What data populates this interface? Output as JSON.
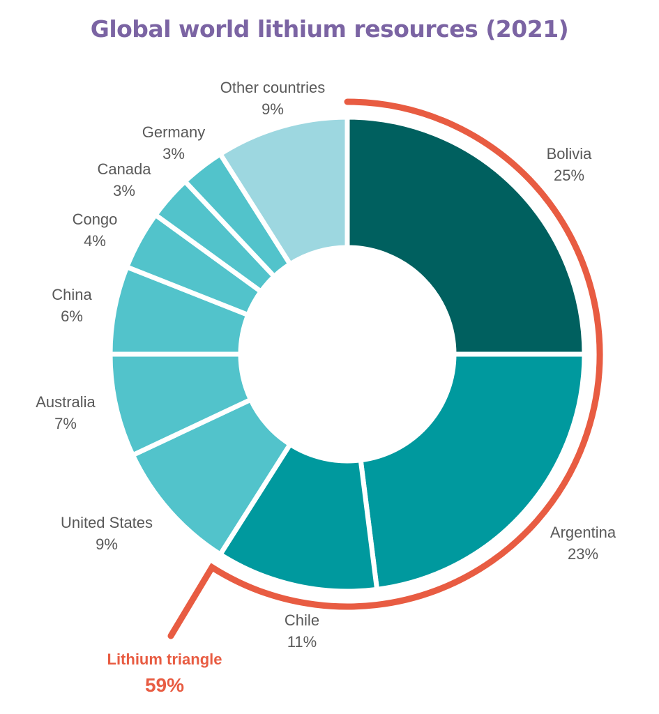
{
  "chart_data": {
    "type": "pie",
    "variant": "donut",
    "title": "Global world lithium resources (2021)",
    "unit": "%",
    "slices": [
      {
        "label": "Bolivia",
        "value": 25,
        "display": "25%",
        "color": "#00605f"
      },
      {
        "label": "Argentina",
        "value": 23,
        "display": "23%",
        "color": "#00999e"
      },
      {
        "label": "Chile",
        "value": 11,
        "display": "11%",
        "color": "#00999e"
      },
      {
        "label": "United States",
        "value": 9,
        "display": "9%",
        "color": "#52c3cb"
      },
      {
        "label": "Australia",
        "value": 7,
        "display": "7%",
        "color": "#52c3cb"
      },
      {
        "label": "China",
        "value": 6,
        "display": "6%",
        "color": "#52c3cb"
      },
      {
        "label": "Congo",
        "value": 4,
        "display": "4%",
        "color": "#52c3cb"
      },
      {
        "label": "Canada",
        "value": 3,
        "display": "3%",
        "color": "#52c3cb"
      },
      {
        "label": "Germany",
        "value": 3,
        "display": "3%",
        "color": "#52c3cb"
      },
      {
        "label": "Other countries",
        "value": 9,
        "display": "9%",
        "color": "#9dd7e0"
      }
    ],
    "annotation": {
      "label": "Lithium triangle",
      "value": "59%",
      "members": [
        "Bolivia",
        "Argentina",
        "Chile"
      ],
      "color": "#e85c42"
    },
    "legend": "none",
    "label_color": "#595959",
    "title_color": "#7b64a3"
  }
}
